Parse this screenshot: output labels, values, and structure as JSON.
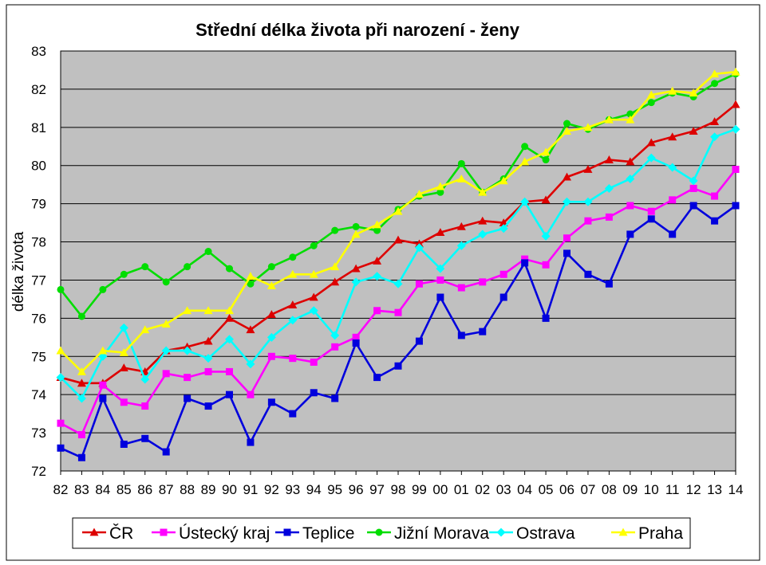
{
  "chart_data": {
    "type": "line",
    "title": "Střední délka života při narození - ženy",
    "xlabel": "",
    "ylabel": "délka života",
    "ylim": [
      72,
      83
    ],
    "yticks": [
      "72",
      "73",
      "74",
      "75",
      "76",
      "77",
      "78",
      "79",
      "80",
      "81",
      "82",
      "83"
    ],
    "categories": [
      "82",
      "83",
      "84",
      "85",
      "86",
      "87",
      "88",
      "89",
      "90",
      "91",
      "92",
      "93",
      "94",
      "95",
      "96",
      "97",
      "98",
      "99",
      "00",
      "01",
      "02",
      "03",
      "04",
      "05",
      "06",
      "07",
      "08",
      "09",
      "10",
      "11",
      "12",
      "13",
      "14"
    ],
    "grid": true,
    "legend_position": "bottom",
    "series": [
      {
        "name": "ČR",
        "color": "#DD0000",
        "marker": "triangle",
        "values": [
          74.45,
          74.3,
          74.3,
          74.7,
          74.6,
          75.15,
          75.25,
          75.4,
          76.0,
          75.7,
          76.1,
          76.35,
          76.55,
          76.95,
          77.3,
          77.5,
          78.05,
          77.95,
          78.25,
          78.4,
          78.55,
          78.5,
          79.05,
          79.1,
          79.7,
          79.9,
          80.15,
          80.1,
          80.6,
          80.75,
          80.9,
          81.15,
          81.6
        ]
      },
      {
        "name": "Ústecký kraj",
        "color": "#FF00FF",
        "marker": "square",
        "values": [
          73.25,
          72.95,
          74.25,
          73.8,
          73.7,
          74.55,
          74.45,
          74.6,
          74.6,
          74.0,
          75.0,
          74.95,
          74.85,
          75.25,
          75.5,
          76.2,
          76.15,
          76.9,
          77.0,
          76.8,
          76.95,
          77.15,
          77.55,
          77.4,
          78.1,
          78.55,
          78.65,
          78.95,
          78.8,
          79.1,
          79.4,
          79.2,
          79.9
        ]
      },
      {
        "name": "Teplice",
        "color": "#0000DD",
        "marker": "square",
        "values": [
          72.6,
          72.35,
          73.9,
          72.7,
          72.85,
          72.5,
          73.9,
          73.7,
          74.0,
          72.75,
          73.8,
          73.5,
          74.05,
          73.9,
          75.35,
          74.45,
          74.75,
          75.4,
          76.55,
          75.55,
          75.65,
          76.55,
          77.45,
          76.0,
          77.7,
          77.15,
          76.9,
          78.2,
          78.6,
          78.2,
          78.95,
          78.55,
          78.95
        ]
      },
      {
        "name": "Jižní Morava",
        "color": "#00DD00",
        "marker": "circle",
        "values": [
          76.75,
          76.05,
          76.75,
          77.15,
          77.35,
          76.95,
          77.35,
          77.75,
          77.3,
          76.9,
          77.35,
          77.6,
          77.9,
          78.3,
          78.4,
          78.3,
          78.85,
          79.2,
          79.3,
          80.05,
          79.3,
          79.65,
          80.5,
          80.15,
          81.1,
          80.95,
          81.2,
          81.35,
          81.65,
          81.9,
          81.8,
          82.15,
          82.4
        ]
      },
      {
        "name": "Ostrava",
        "color": "#00FFFF",
        "marker": "diamond",
        "values": [
          74.45,
          73.9,
          75.0,
          75.75,
          74.4,
          75.15,
          75.15,
          74.95,
          75.45,
          74.8,
          75.5,
          75.95,
          76.2,
          75.55,
          76.95,
          77.1,
          76.9,
          77.85,
          77.3,
          77.9,
          78.2,
          78.35,
          79.05,
          78.15,
          79.05,
          79.05,
          79.4,
          79.65,
          80.2,
          79.95,
          79.6,
          80.75,
          80.95
        ]
      },
      {
        "name": "Praha",
        "color": "#FFFF00",
        "marker": "triangle",
        "values": [
          75.15,
          74.6,
          75.15,
          75.1,
          75.7,
          75.85,
          76.2,
          76.2,
          76.2,
          77.1,
          76.85,
          77.15,
          77.15,
          77.35,
          78.2,
          78.45,
          78.8,
          79.25,
          79.45,
          79.65,
          79.3,
          79.6,
          80.1,
          80.35,
          80.9,
          81.0,
          81.2,
          81.2,
          81.85,
          81.95,
          81.9,
          82.4,
          82.45
        ]
      }
    ]
  }
}
